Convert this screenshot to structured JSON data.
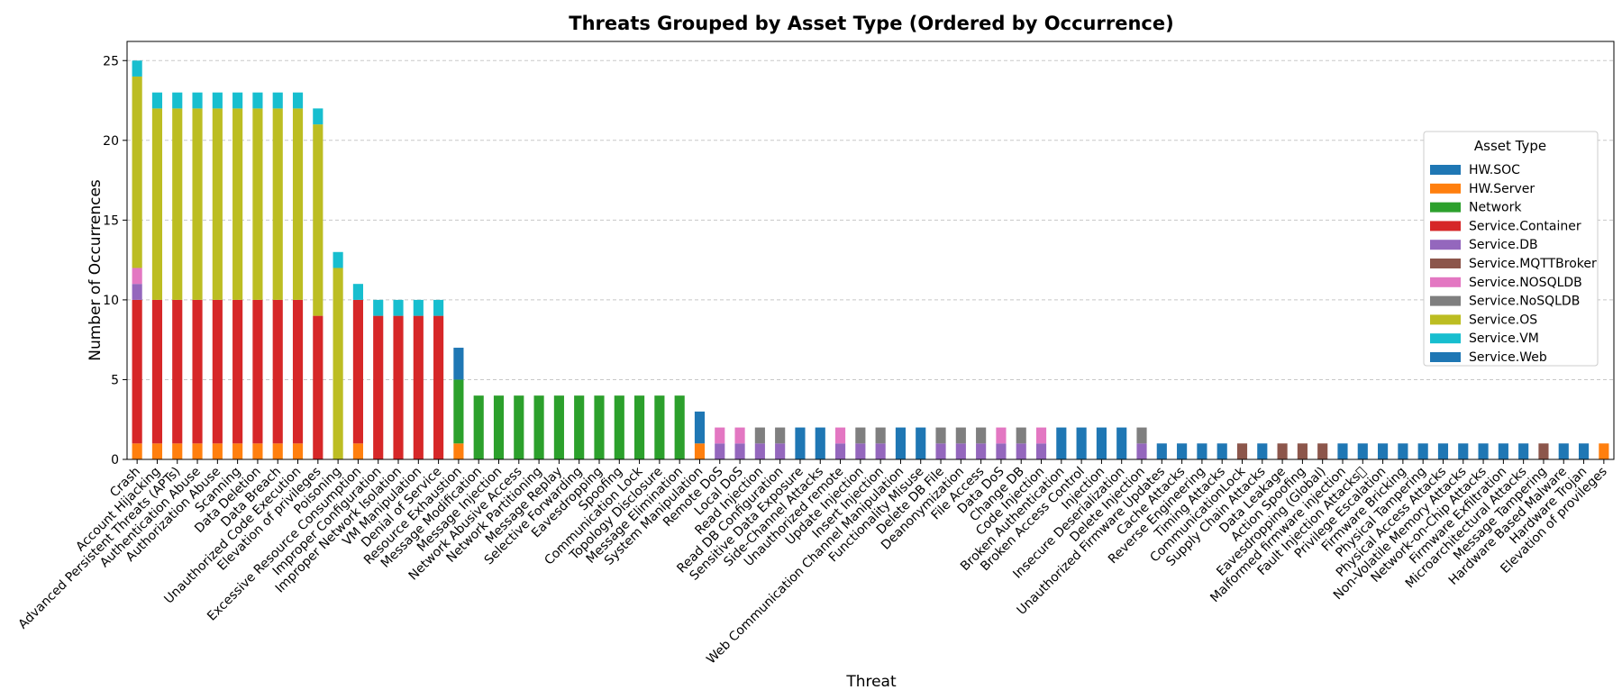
{
  "chart_data": {
    "type": "bar",
    "stacked": true,
    "title": "Threats Grouped by Asset Type (Ordered by Occurrence)",
    "xlabel": "Threat",
    "ylabel": "Number of Occurrences",
    "ylim": [
      0,
      26.2
    ],
    "yticks": [
      0,
      5,
      10,
      15,
      20,
      25
    ],
    "grid": "horizontal dashed",
    "legend_title": "Asset Type",
    "legend_position": "right",
    "categories": [
      "Crash",
      "Account Hijacking",
      "Advanced Persistent Threats (APTs)",
      "Authentication Abuse",
      "Authorization Abuse",
      "Scanning",
      "Data Deletion",
      "Data Breach",
      "Unauthorized Code Execution",
      "Elevation of privileges",
      "Poisoning",
      "Excessive Resource Consumption",
      "Improper Configuration",
      "Improper Network Isolation",
      "VM Manipulation",
      "Denial of Service",
      "Resource Exhaustion",
      "Message Modification",
      "Message Injection",
      "Network Abusive Access",
      "Network Partitioning",
      "Message Replay",
      "Selective Forwarding",
      "Eavesdropping",
      "Spoofing",
      "Communication Lock",
      "Topology Disclosure",
      "Message Elimination",
      "System Manipulation",
      "Remote DoS",
      "Local DoS",
      "Read Injection",
      "Read DB Configuration",
      "Sensitive Data Exposure",
      "Side-Channel Attacks",
      "Unauthorized remote",
      "Update Injection",
      "Insert Injection",
      "Web Communication Channel Manipulation",
      "Functionality Misuse",
      "Delete DB File",
      "Deanonymization",
      "File Access",
      "Data DoS",
      "Change DB",
      "Code Injection",
      "Broken Authentication",
      "Broken Access Control",
      "Injection",
      "Insecure Deserialization",
      "Delete Injection",
      "Unauthorized Firmware Updates",
      "Cache Attacks",
      "Reverse Engineering",
      "Timing Attacks",
      "CommunicationLock",
      "Supply Chain Attacks",
      "Data Leakage",
      "Action Spoofing",
      "Eavesdropping (Global)",
      "Malformed firmware injection",
      "Fault Injection Attacks\u0000",
      "Privilege Escalation",
      "Firmware Bricking",
      "Physical Tampering",
      "Physical Access Attacks",
      "Non-Volatile Memory Attacks",
      "Network-on-Chip Attacks",
      "Firmware Exfiltration",
      "Microarchitectural Attacks",
      "Message Tampering",
      "Hardware Based Malware",
      "Hardware Trojan",
      "Elevation of provileges"
    ],
    "series": [
      {
        "name": "HW.SOC",
        "color": "#1f77b4",
        "values": [
          0,
          0,
          0,
          0,
          0,
          0,
          0,
          0,
          0,
          0,
          0,
          0,
          0,
          0,
          0,
          0,
          0,
          0,
          0,
          0,
          0,
          0,
          0,
          0,
          0,
          0,
          0,
          0,
          0,
          0,
          0,
          0,
          0,
          0,
          0,
          0,
          0,
          0,
          0,
          0,
          0,
          0,
          0,
          0,
          0,
          0,
          0,
          0,
          0,
          0,
          0,
          1,
          1,
          1,
          1,
          0,
          1,
          0,
          0,
          0,
          1,
          1,
          1,
          1,
          1,
          1,
          1,
          1,
          1,
          1,
          0,
          1,
          1,
          0
        ]
      },
      {
        "name": "HW.Server",
        "color": "#ff7f0e",
        "values": [
          1,
          1,
          1,
          1,
          1,
          1,
          1,
          1,
          1,
          0,
          0,
          1,
          0,
          0,
          0,
          0,
          1,
          0,
          0,
          0,
          0,
          0,
          0,
          0,
          0,
          0,
          0,
          0,
          1,
          0,
          0,
          0,
          0,
          0,
          0,
          0,
          0,
          0,
          0,
          0,
          0,
          0,
          0,
          0,
          0,
          0,
          0,
          0,
          0,
          0,
          0,
          0,
          0,
          0,
          0,
          0,
          0,
          0,
          0,
          0,
          0,
          0,
          0,
          0,
          0,
          0,
          0,
          0,
          0,
          0,
          0,
          0,
          0,
          1
        ]
      },
      {
        "name": "Network",
        "color": "#2ca02c",
        "values": [
          0,
          0,
          0,
          0,
          0,
          0,
          0,
          0,
          0,
          0,
          0,
          0,
          0,
          0,
          0,
          0,
          4,
          4,
          4,
          4,
          4,
          4,
          4,
          4,
          4,
          4,
          4,
          4,
          0,
          0,
          0,
          0,
          0,
          0,
          0,
          0,
          0,
          0,
          0,
          0,
          0,
          0,
          0,
          0,
          0,
          0,
          0,
          0,
          0,
          0,
          0,
          0,
          0,
          0,
          0,
          0,
          0,
          0,
          0,
          0,
          0,
          0,
          0,
          0,
          0,
          0,
          0,
          0,
          0,
          0,
          0,
          0,
          0,
          0
        ]
      },
      {
        "name": "Service.Container",
        "color": "#d62728",
        "values": [
          9,
          9,
          9,
          9,
          9,
          9,
          9,
          9,
          9,
          9,
          0,
          9,
          9,
          9,
          9,
          9,
          0,
          0,
          0,
          0,
          0,
          0,
          0,
          0,
          0,
          0,
          0,
          0,
          0,
          0,
          0,
          0,
          0,
          0,
          0,
          0,
          0,
          0,
          0,
          0,
          0,
          0,
          0,
          0,
          0,
          0,
          0,
          0,
          0,
          0,
          0,
          0,
          0,
          0,
          0,
          0,
          0,
          0,
          0,
          0,
          0,
          0,
          0,
          0,
          0,
          0,
          0,
          0,
          0,
          0,
          0,
          0,
          0,
          0
        ]
      },
      {
        "name": "Service.DB",
        "color": "#9467bd",
        "values": [
          1,
          0,
          0,
          0,
          0,
          0,
          0,
          0,
          0,
          0,
          0,
          0,
          0,
          0,
          0,
          0,
          0,
          0,
          0,
          0,
          0,
          0,
          0,
          0,
          0,
          0,
          0,
          0,
          0,
          1,
          1,
          1,
          1,
          0,
          0,
          1,
          1,
          1,
          0,
          0,
          1,
          1,
          1,
          1,
          1,
          1,
          0,
          0,
          0,
          0,
          1,
          0,
          0,
          0,
          0,
          0,
          0,
          0,
          0,
          0,
          0,
          0,
          0,
          0,
          0,
          0,
          0,
          0,
          0,
          0,
          0,
          0,
          0,
          0
        ]
      },
      {
        "name": "Service.MQTTBroker",
        "color": "#8c564b",
        "values": [
          0,
          0,
          0,
          0,
          0,
          0,
          0,
          0,
          0,
          0,
          0,
          0,
          0,
          0,
          0,
          0,
          0,
          0,
          0,
          0,
          0,
          0,
          0,
          0,
          0,
          0,
          0,
          0,
          0,
          0,
          0,
          0,
          0,
          0,
          0,
          0,
          0,
          0,
          0,
          0,
          0,
          0,
          0,
          0,
          0,
          0,
          0,
          0,
          0,
          0,
          0,
          0,
          0,
          0,
          0,
          1,
          0,
          1,
          1,
          1,
          0,
          0,
          0,
          0,
          0,
          0,
          0,
          0,
          0,
          0,
          1,
          0,
          0,
          0
        ]
      },
      {
        "name": "Service.NOSQLDB",
        "color": "#e377c2",
        "values": [
          1,
          0,
          0,
          0,
          0,
          0,
          0,
          0,
          0,
          0,
          0,
          0,
          0,
          0,
          0,
          0,
          0,
          0,
          0,
          0,
          0,
          0,
          0,
          0,
          0,
          0,
          0,
          0,
          0,
          1,
          1,
          0,
          0,
          0,
          0,
          1,
          0,
          0,
          0,
          0,
          0,
          0,
          0,
          1,
          0,
          1,
          0,
          0,
          0,
          0,
          0,
          0,
          0,
          0,
          0,
          0,
          0,
          0,
          0,
          0,
          0,
          0,
          0,
          0,
          0,
          0,
          0,
          0,
          0,
          0,
          0,
          0,
          0,
          0
        ]
      },
      {
        "name": "Service.NoSQLDB",
        "color": "#7f7f7f",
        "values": [
          0,
          0,
          0,
          0,
          0,
          0,
          0,
          0,
          0,
          0,
          0,
          0,
          0,
          0,
          0,
          0,
          0,
          0,
          0,
          0,
          0,
          0,
          0,
          0,
          0,
          0,
          0,
          0,
          0,
          0,
          0,
          1,
          1,
          0,
          0,
          0,
          1,
          1,
          0,
          0,
          1,
          1,
          1,
          0,
          1,
          0,
          0,
          0,
          0,
          0,
          1,
          0,
          0,
          0,
          0,
          0,
          0,
          0,
          0,
          0,
          0,
          0,
          0,
          0,
          0,
          0,
          0,
          0,
          0,
          0,
          0,
          0,
          0,
          0
        ]
      },
      {
        "name": "Service.OS",
        "color": "#bcbd22",
        "values": [
          12,
          12,
          12,
          12,
          12,
          12,
          12,
          12,
          12,
          12,
          12,
          0,
          0,
          0,
          0,
          0,
          0,
          0,
          0,
          0,
          0,
          0,
          0,
          0,
          0,
          0,
          0,
          0,
          0,
          0,
          0,
          0,
          0,
          0,
          0,
          0,
          0,
          0,
          0,
          0,
          0,
          0,
          0,
          0,
          0,
          0,
          0,
          0,
          0,
          0,
          0,
          0,
          0,
          0,
          0,
          0,
          0,
          0,
          0,
          0,
          0,
          0,
          0,
          0,
          0,
          0,
          0,
          0,
          0,
          0,
          0,
          0,
          0,
          0
        ]
      },
      {
        "name": "Service.VM",
        "color": "#17becf",
        "values": [
          1,
          1,
          1,
          1,
          1,
          1,
          1,
          1,
          1,
          1,
          1,
          1,
          1,
          1,
          1,
          1,
          0,
          0,
          0,
          0,
          0,
          0,
          0,
          0,
          0,
          0,
          0,
          0,
          0,
          0,
          0,
          0,
          0,
          0,
          0,
          0,
          0,
          0,
          0,
          0,
          0,
          0,
          0,
          0,
          0,
          0,
          0,
          0,
          0,
          0,
          0,
          0,
          0,
          0,
          0,
          0,
          0,
          0,
          0,
          0,
          0,
          0,
          0,
          0,
          0,
          0,
          0,
          0,
          0,
          0,
          0,
          0,
          0,
          0
        ]
      },
      {
        "name": "Service.Web",
        "color": "#1f77b4",
        "values": [
          0,
          0,
          0,
          0,
          0,
          0,
          0,
          0,
          0,
          0,
          0,
          0,
          0,
          0,
          0,
          0,
          2,
          0,
          0,
          0,
          0,
          0,
          0,
          0,
          0,
          0,
          0,
          0,
          2,
          0,
          0,
          0,
          0,
          2,
          2,
          0,
          0,
          0,
          2,
          2,
          0,
          0,
          0,
          0,
          0,
          0,
          2,
          2,
          2,
          2,
          0,
          0,
          0,
          0,
          0,
          0,
          0,
          0,
          0,
          0,
          0,
          0,
          0,
          0,
          0,
          0,
          0,
          0,
          0,
          0,
          0,
          0,
          0,
          0
        ]
      }
    ]
  }
}
